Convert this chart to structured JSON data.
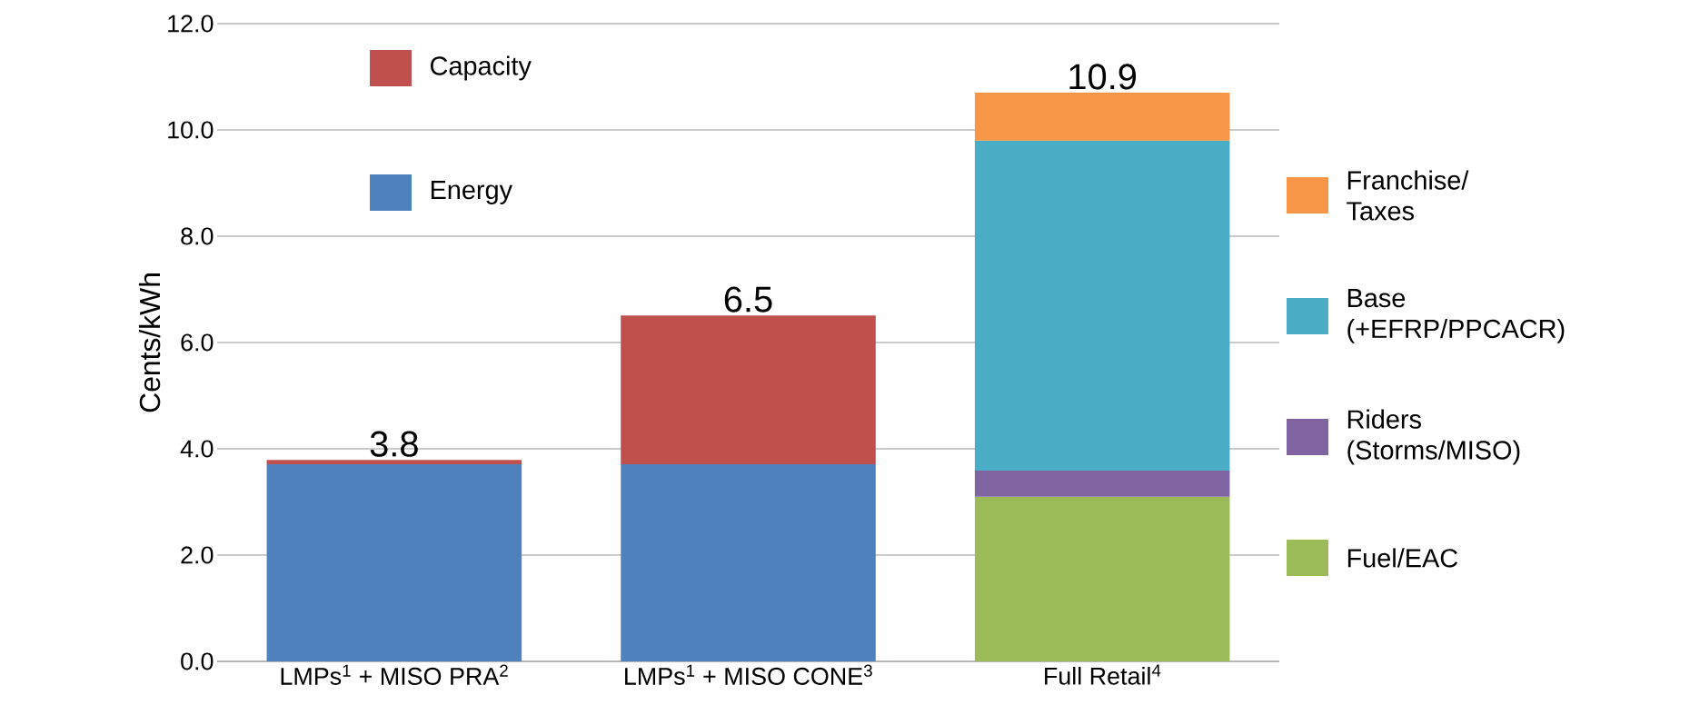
{
  "chart_data": {
    "type": "bar",
    "stacked": true,
    "ylabel": "Cents/kWh",
    "categories": [
      "LMPs$^{1}$ + MISO PRA$^{2}$",
      "LMPs$^{1}$ + MISO CONE$^{3}$",
      "Full Retail$^{4}$"
    ],
    "series": [
      {
        "name": "Energy",
        "color": "#4f81bd",
        "values": [
          3.71,
          3.71,
          null
        ]
      },
      {
        "name": "Capacity",
        "color": "#c0504d",
        "values": [
          0.08,
          2.8,
          null
        ]
      },
      {
        "name": "Fuel/EAC",
        "color": "#9bbb59",
        "values": [
          null,
          null,
          3.1
        ]
      },
      {
        "name": "Riders (Storms/MISO)",
        "color": "#8064a2",
        "values": [
          null,
          null,
          0.49
        ]
      },
      {
        "name": "Base (+EFRP/PPCACR)",
        "color": "#4bacc6",
        "values": [
          null,
          null,
          6.21
        ]
      },
      {
        "name": "Franchise/ Taxes",
        "color": "#f79646",
        "values": [
          null,
          null,
          0.9
        ]
      }
    ],
    "totals": [
      "3.8",
      "6.5",
      "10.9"
    ],
    "ylim": [
      0,
      12
    ],
    "yticks": [
      {
        "value": 0,
        "label": "0.0"
      },
      {
        "value": 2,
        "label": "2.0"
      },
      {
        "value": 4,
        "label": "4.0"
      },
      {
        "value": 6,
        "label": "6.0"
      },
      {
        "value": 8,
        "label": "8.0"
      },
      {
        "value": 10,
        "label": "10.0"
      },
      {
        "value": 12,
        "label": "12.0"
      }
    ],
    "grid": "y",
    "legend": "right"
  }
}
